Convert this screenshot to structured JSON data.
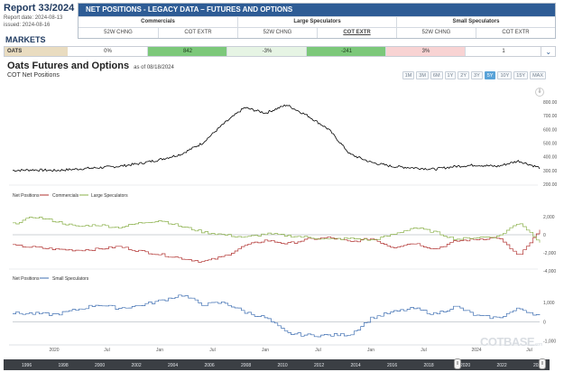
{
  "report": {
    "title": "Report 33/2024",
    "report_date": "Report date: 2024-08-13",
    "issued": "issued: 2024-08-16",
    "markets_label": "MARKETS"
  },
  "cot_table": {
    "title": "NET POSITIONS - LEGACY DATA – FUTURES AND OPTIONS",
    "groups": [
      "Commercials",
      "Large Speculators",
      "Small Speculators"
    ],
    "subheaders": [
      "52W CHNG",
      "COT EXTR",
      "52W CHNG",
      "COT EXTR",
      "52W CHNG",
      "COT EXTR"
    ],
    "row": {
      "market": "OATS",
      "values": [
        "0%",
        "842",
        "-3%",
        "-241",
        "3%",
        "1"
      ]
    }
  },
  "chart": {
    "title": "Oats Futures and Options",
    "as_of": "as of 08/18/2024",
    "subtitle": "COT Net Positions",
    "range_buttons": [
      "1M",
      "3M",
      "6M",
      "1Y",
      "2Y",
      "3Y",
      "5Y",
      "10Y",
      "15Y",
      "MAX"
    ],
    "active_range": "5Y",
    "watermark": "COTBASE",
    "watermark_suffix": ".com"
  },
  "chart_data": [
    {
      "type": "line",
      "title": "",
      "series": [
        {
          "name": "",
          "color": "#000000"
        }
      ],
      "y_ticks": [
        "800.00",
        "700.00",
        "600.00",
        "500.00",
        "400.00",
        "300.00",
        "200.00"
      ],
      "ylim": [
        200,
        860
      ],
      "x": [
        0,
        4,
        8,
        12,
        16,
        20,
        24,
        28,
        32,
        36,
        40,
        44,
        48,
        52,
        56,
        60,
        64,
        68,
        72,
        76,
        80,
        84,
        88,
        92,
        96,
        100
      ],
      "values": [
        300,
        305,
        300,
        310,
        320,
        330,
        350,
        380,
        420,
        500,
        640,
        760,
        720,
        780,
        700,
        600,
        420,
        360,
        330,
        320,
        310,
        330,
        340,
        330,
        370,
        320
      ]
    },
    {
      "type": "line",
      "title": "",
      "label": "Net Positions",
      "series": [
        {
          "name": "Commercials",
          "color": "#b0302f",
          "values": [
            -1200,
            -1400,
            -1600,
            -1700,
            -1600,
            -1300,
            -1800,
            -2200,
            -2600,
            -3000,
            -2400,
            -1200,
            -600,
            -1000,
            -500,
            -300,
            -800,
            -400,
            -1400,
            -900,
            -1600,
            -700,
            -500,
            -300,
            -2400,
            500
          ]
        },
        {
          "name": "Large Speculators",
          "color": "#8ab04a",
          "values": [
            1200,
            2000,
            1500,
            900,
            1100,
            800,
            1300,
            1600,
            900,
            300,
            0,
            -300,
            100,
            -100,
            -300,
            -500,
            -400,
            -600,
            0,
            800,
            300,
            -500,
            -300,
            -200,
            1400,
            -800
          ]
        }
      ],
      "y_ticks": [
        "2,000",
        "0",
        "-2,000",
        "-4,000"
      ],
      "ylim": [
        -4000,
        3000
      ]
    },
    {
      "type": "line",
      "title": "",
      "label": "Net Positions",
      "series": [
        {
          "name": "Small Speculators",
          "color": "#3f6fb2",
          "values": [
            450,
            420,
            380,
            620,
            900,
            700,
            850,
            1100,
            1400,
            900,
            1000,
            500,
            200,
            -600,
            -700,
            -700,
            -650,
            200,
            500,
            700,
            400,
            800,
            300,
            200,
            700,
            300
          ]
        }
      ],
      "y_ticks": [
        "1,000",
        "0",
        "-1,000"
      ],
      "ylim": [
        -1200,
        1800
      ]
    }
  ],
  "x_axis": {
    "labels": [
      "2020",
      "Jul",
      "Jan",
      "Jul",
      "Jan",
      "Jul",
      "Jan",
      "Jul",
      "2024",
      "Jul"
    ]
  },
  "navigator": {
    "years": [
      "1996",
      "1998",
      "2000",
      "2002",
      "2004",
      "2006",
      "2008",
      "2010",
      "2012",
      "2014",
      "2016",
      "2018",
      "2020",
      "2022",
      "2024"
    ]
  }
}
